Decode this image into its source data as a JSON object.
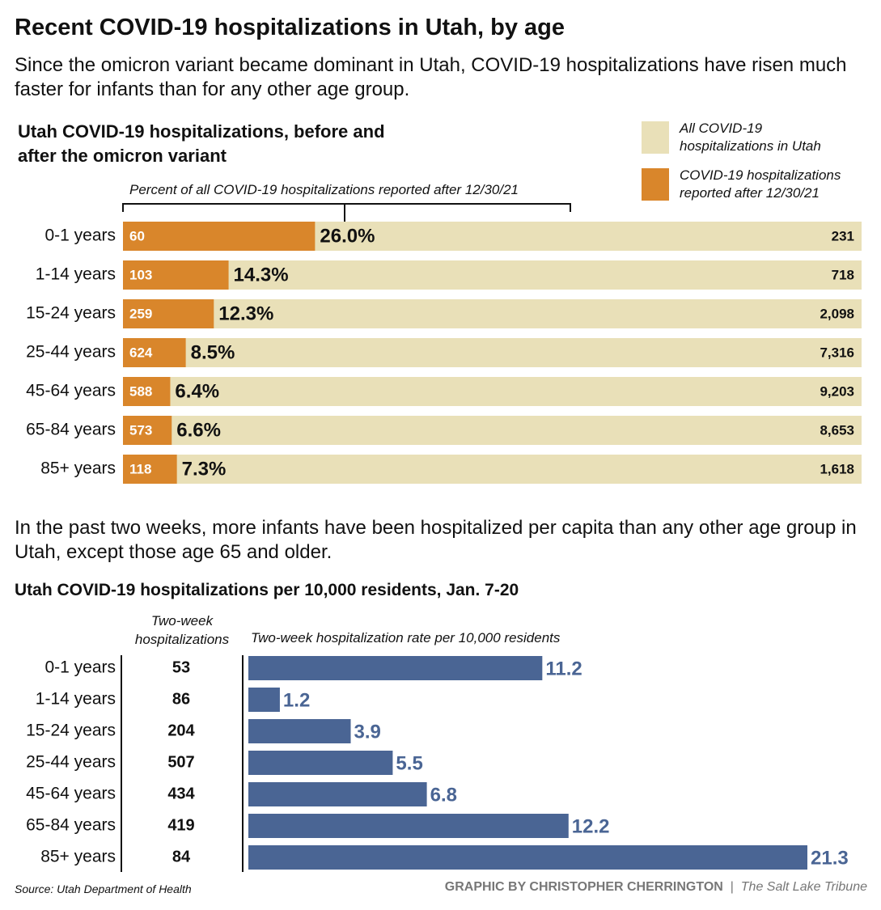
{
  "title": "Recent COVID-19 hospitalizations in Utah, by age",
  "intro": "Since the omicron variant became dominant in Utah, COVID-19 hospitalizations have risen much faster for infants than for any other age group.",
  "intro2": "In the past two weeks, more infants have been hospitalized per capita than any other age group in Utah, except those age 65 and older.",
  "chart_data": [
    {
      "type": "bar",
      "title": "Utah COVID-19 hospitalizations, before and after the omicron variant",
      "annotation": "Percent of all COVID-19 hospitalizations reported after 12/30/21",
      "categories": [
        "0-1 years",
        "1-14 years",
        "15-24 years",
        "25-44 years",
        "45-64 years",
        "65-84 years",
        "85+ years"
      ],
      "series": [
        {
          "name": "All COVID-19 hospitalizations in Utah",
          "color": "#e9e0b8",
          "values": [
            231,
            718,
            2098,
            7316,
            9203,
            8653,
            1618
          ],
          "value_labels": [
            "231",
            "718",
            "2,098",
            "7,316",
            "9,203",
            "8,653",
            "1,618"
          ]
        },
        {
          "name": "COVID-19 hospitalizations reported after 12/30/21",
          "color": "#d9862b",
          "values": [
            60,
            103,
            259,
            624,
            588,
            573,
            118
          ]
        }
      ],
      "percent_values": [
        26.0,
        14.3,
        12.3,
        8.5,
        6.4,
        6.6,
        7.3
      ],
      "percent_labels": [
        "26.0%",
        "14.3%",
        "12.3%",
        "8.5%",
        "6.4%",
        "6.6%",
        "7.3%"
      ]
    },
    {
      "type": "bar",
      "title": "Utah COVID-19 hospitalizations per 10,000 residents, Jan. 7-20",
      "column_label": "Two-week hospitalizations",
      "axis_label": "Two-week hospitalization rate per 10,000 residents",
      "categories": [
        "0-1 years",
        "1-14 years",
        "15-24 years",
        "25-44 years",
        "45-64 years",
        "65-84 years",
        "85+ years"
      ],
      "counts": [
        53,
        86,
        204,
        507,
        434,
        419,
        84
      ],
      "values": [
        11.2,
        1.2,
        3.9,
        5.5,
        6.8,
        12.2,
        21.3
      ],
      "color": "#4a6594"
    }
  ],
  "source": "Source: Utah Department of Health",
  "credit": "GRAPHIC BY CHRISTOPHER CHERRINGTON",
  "publisher": "The Salt Lake Tribune"
}
